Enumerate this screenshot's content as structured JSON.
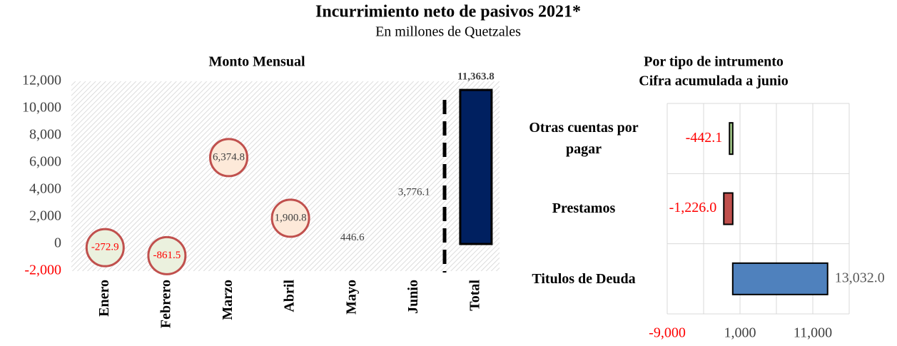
{
  "title": "Incurrimiento neto de pasivos 2021*",
  "subtitle": "En millones de Quetzales",
  "chart_data": [
    {
      "type": "scatter",
      "title": "Monto Mensual",
      "categories": [
        "Enero",
        "Febrero",
        "Marzo",
        "Abril",
        "Mayo",
        "Junio",
        "Total"
      ],
      "values": [
        -272.9,
        -861.5,
        6374.8,
        1900.8,
        446.6,
        3776.1,
        11363.8
      ],
      "value_labels": [
        "-272.9",
        "-861.5",
        "6,374.8",
        "1,900.8",
        "446.6",
        "3,776.1",
        "11,363.8"
      ],
      "kinds": [
        "marker",
        "marker",
        "marker",
        "marker",
        "label",
        "label",
        "bar"
      ],
      "color": "#002060",
      "ylim": [
        -2000,
        12000
      ],
      "yticks": [
        {
          "value": -2000,
          "label": "-2,000"
        },
        0,
        {
          "value": 2000,
          "label": "2,000"
        },
        {
          "value": 4000,
          "label": "4,000"
        },
        {
          "value": 6000,
          "label": "6,000"
        },
        {
          "value": 8000,
          "label": "8,000"
        },
        {
          "value": 10000,
          "label": "10,000"
        },
        {
          "value": 12000,
          "label": "12,000"
        }
      ]
    },
    {
      "type": "hbar",
      "title": [
        "Por tipo de intrumento",
        "Cifra acumulada a junio"
      ],
      "categories": [
        "Otras cuentas por pagar",
        "Prestamos",
        "Titulos de Deuda"
      ],
      "values": [
        -442.1,
        -1226.0,
        13032.0
      ],
      "value_labels": [
        "-442.1",
        "-1,226.0",
        "13,032.0"
      ],
      "colors": [
        "#a9d18e",
        "#c0504d",
        "#4f81bd"
      ],
      "xlim": [
        -9000,
        16000
      ],
      "xticks": [
        {
          "value": -9000,
          "label": "-9,000"
        },
        {
          "value": 1000,
          "label": "1,000"
        },
        {
          "value": 11000,
          "label": "11,000"
        }
      ],
      "xgrid_minor": [
        -4000,
        6000,
        16000
      ],
      "grid": true
    }
  ]
}
